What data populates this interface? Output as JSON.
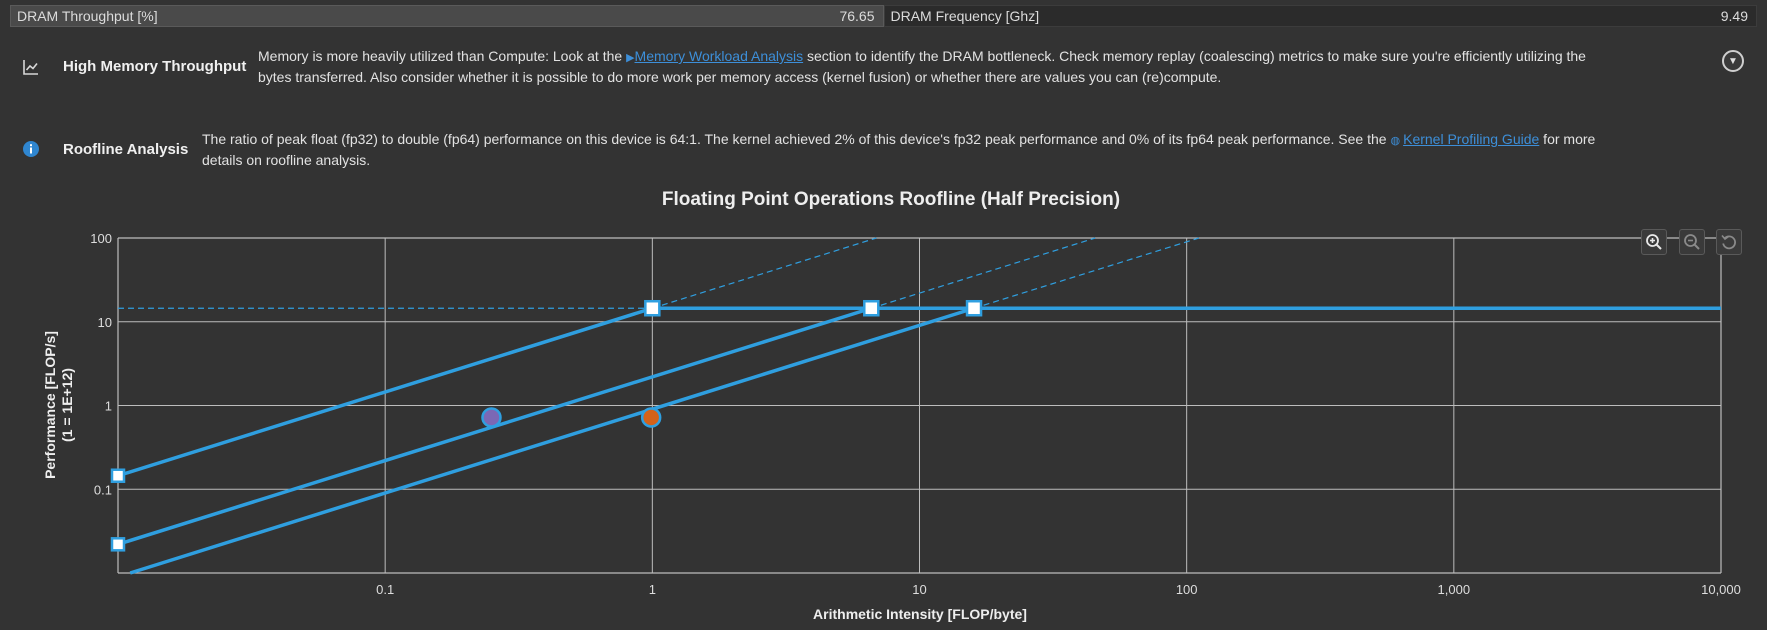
{
  "metrics": {
    "left": {
      "label": "DRAM Throughput [%]",
      "value": "76.65"
    },
    "right": {
      "label": "DRAM Frequency [Ghz]",
      "value": "9.49"
    }
  },
  "rules": [
    {
      "icon": "chart-line-icon",
      "title": "High Memory Throughput",
      "text_before": "Memory is more heavily utilized than Compute: Look at the ",
      "link": "Memory Workload Analysis",
      "text_after_line1": " section to identify the DRAM bottleneck. Check memory replay (coalescing) metrics to make sure you're efficiently utilizing the",
      "text_line2": "bytes transferred. Also consider whether it is possible to do more work per memory access (kernel fusion) or whether there are values you can (re)compute."
    },
    {
      "icon": "info-icon",
      "title": "Roofline Analysis",
      "text_before": "The ratio of peak float (fp32) to double (fp64) performance on this device is 64:1. The kernel achieved 2% of this device's fp32 peak performance and 0% of its fp64 peak performance. See the ",
      "link": "Kernel Profiling Guide",
      "text_after_line1": " for more",
      "text_line2": "details on roofline analysis."
    }
  ],
  "toolbar": {
    "zoom_in": "zoom-in-icon",
    "zoom_out": "zoom-out-icon",
    "reset": "reset-icon"
  },
  "chart_data": {
    "type": "line",
    "title": "Floating Point Operations Roofline (Half Precision)",
    "xlabel": "Arithmetic Intensity [FLOP/byte]",
    "ylabel_line1": "Performance [FLOP/s]",
    "ylabel_line2": "(1 = 1E+12)",
    "x_scale": "log",
    "y_scale": "log",
    "xlim": [
      0.01,
      10000
    ],
    "ylim": [
      0.01,
      100
    ],
    "x_ticks": [
      {
        "value": 0.1,
        "label": "0.1"
      },
      {
        "value": 1,
        "label": "1"
      },
      {
        "value": 10,
        "label": "10"
      },
      {
        "value": 100,
        "label": "100"
      },
      {
        "value": 1000,
        "label": "1,000"
      },
      {
        "value": 10000,
        "label": "10,000"
      }
    ],
    "y_ticks": [
      {
        "value": 0.1,
        "label": "0.1"
      },
      {
        "value": 1,
        "label": "1"
      },
      {
        "value": 10,
        "label": "10"
      },
      {
        "value": 100,
        "label": "100"
      }
    ],
    "grid": true,
    "peak_performance": 14.5,
    "rooflines": [
      {
        "bandwidth": 14.5,
        "ridge": 1.0
      },
      {
        "bandwidth": 2.2,
        "ridge": 6.6
      },
      {
        "bandwidth": 0.9,
        "ridge": 16.0
      }
    ],
    "achieved_points": [
      {
        "x": 0.25,
        "y": 0.72,
        "color": "#7b68b5"
      },
      {
        "x": 0.99,
        "y": 0.72,
        "color": "#d4621a"
      }
    ],
    "colors": {
      "roof": "#2f9fe0",
      "grid": "#bdbdbd",
      "background": "#333333"
    }
  }
}
